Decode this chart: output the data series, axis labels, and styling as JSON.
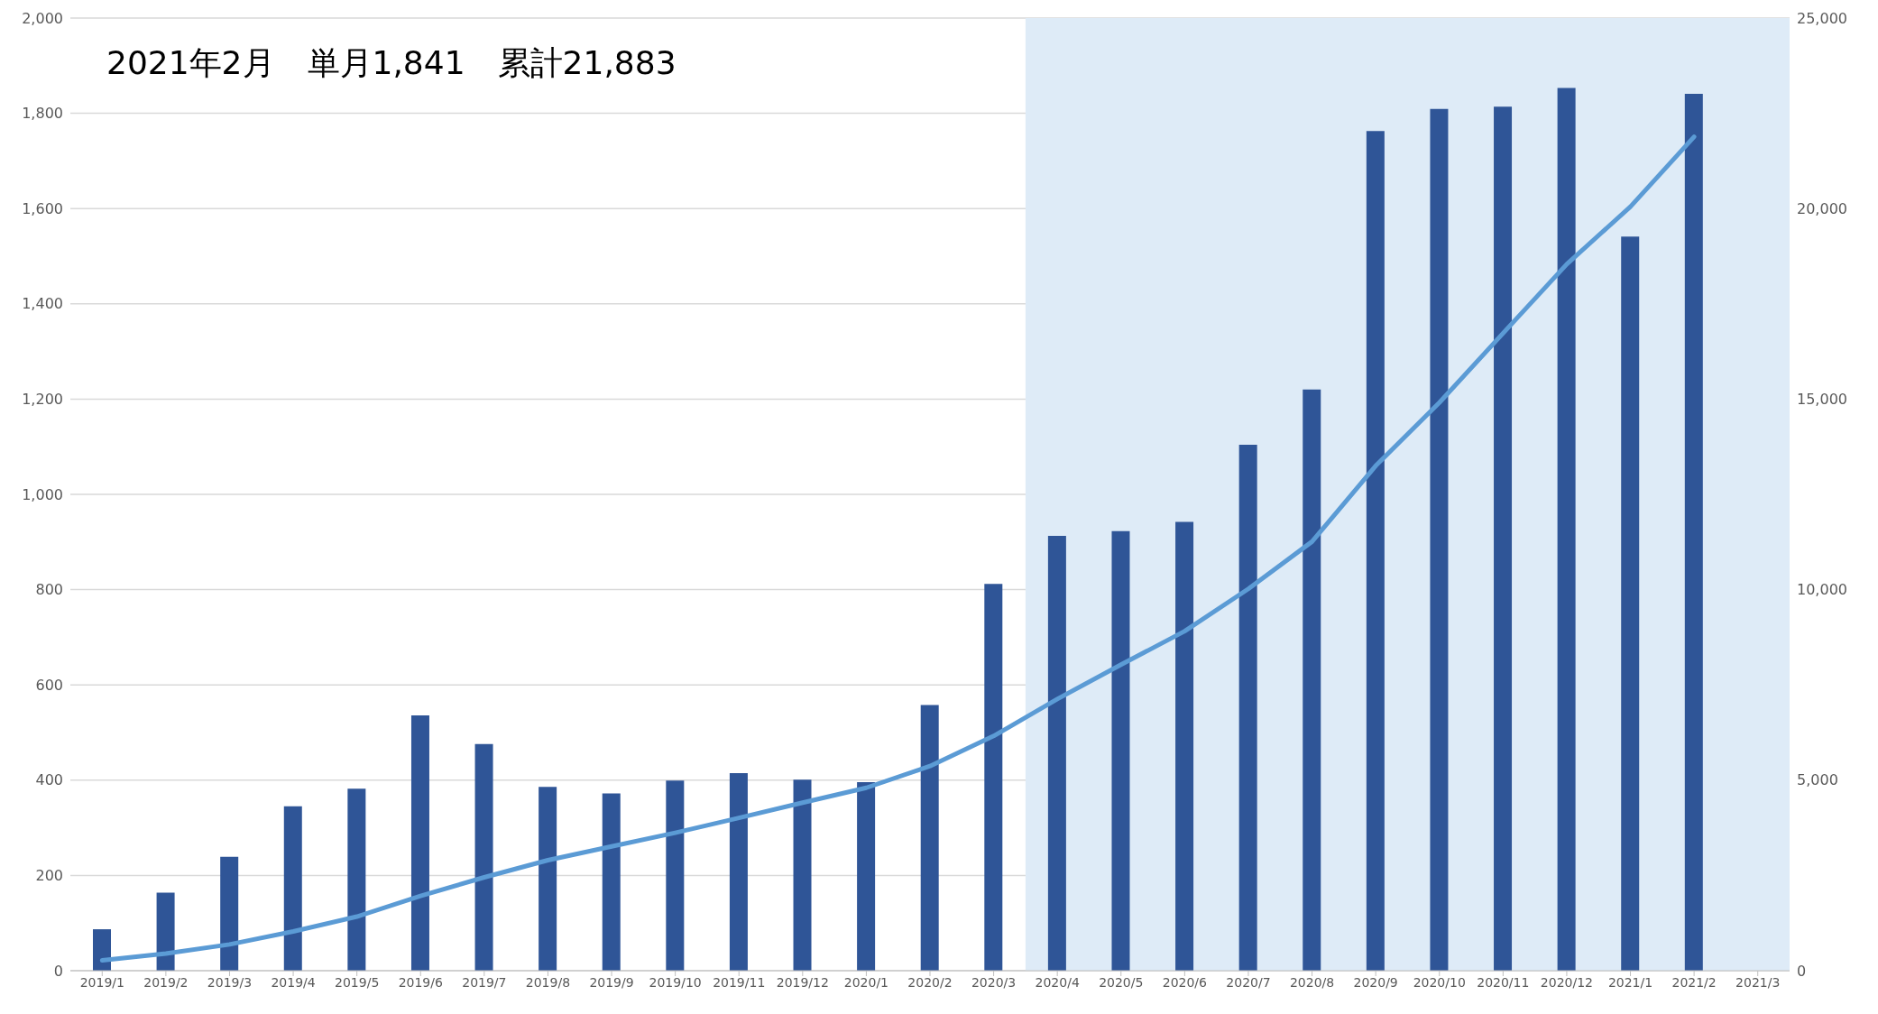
{
  "chart_data": {
    "type": "bar",
    "annotations": [
      "2021年2月　単月1,841　累計21,883"
    ],
    "categories": [
      "2019/1",
      "2019/2",
      "2019/3",
      "2019/4",
      "2019/5",
      "2019/6",
      "2019/7",
      "2019/8",
      "2019/9",
      "2019/10",
      "2019/11",
      "2019/12",
      "2020/1",
      "2020/2",
      "2020/3",
      "2020/4",
      "2020/5",
      "2020/6",
      "2020/7",
      "2020/8",
      "2020/9",
      "2020/10",
      "2020/11",
      "2020/12",
      "2021/1",
      "2021/2",
      "2021/3"
    ],
    "series": [
      {
        "color": "#2f5597",
        "values": [
          87,
          164,
          239,
          345,
          382,
          536,
          476,
          386,
          372,
          399,
          415,
          401,
          396,
          558,
          812,
          913,
          923,
          942,
          1104,
          1220,
          1763,
          1809,
          1814,
          1853,
          1541,
          1841,
          null
        ]
      },
      {
        "type": "line",
        "axis": "y2",
        "color": "#5b9bd5",
        "values": [
          270,
          450,
          690,
          1030,
          1420,
          1960,
          2450,
          2900,
          3260,
          3620,
          4010,
          4410,
          4800,
          5370,
          6160,
          7130,
          8030,
          8910,
          10020,
          11260,
          13250,
          14910,
          16730,
          18540,
          20050,
          21883,
          null
        ]
      }
    ],
    "ylim": [
      0,
      2000
    ],
    "yticks": [
      0,
      200,
      400,
      600,
      800,
      {
        "value": 1000,
        "label": "1,000"
      },
      {
        "value": 1200,
        "label": "1,200"
      },
      {
        "value": 1400,
        "label": "1,400"
      },
      {
        "value": 1600,
        "label": "1,600"
      },
      {
        "value": 1800,
        "label": "1,800"
      },
      {
        "value": 2000,
        "label": "2,000"
      }
    ],
    "y2lim": [
      0,
      25000
    ],
    "y2ticks": [
      0,
      {
        "value": 5000,
        "label": "5,000"
      },
      {
        "value": 10000,
        "label": "10,000"
      },
      {
        "value": 15000,
        "label": "15,000"
      },
      {
        "value": 20000,
        "label": "20,000"
      },
      {
        "value": 25000,
        "label": "25,000"
      }
    ],
    "bands": [
      {
        "axis": "x",
        "from": "2020/4",
        "to": "2021/3",
        "color": "#deebf7"
      }
    ],
    "grid": "y",
    "marker": "none"
  }
}
